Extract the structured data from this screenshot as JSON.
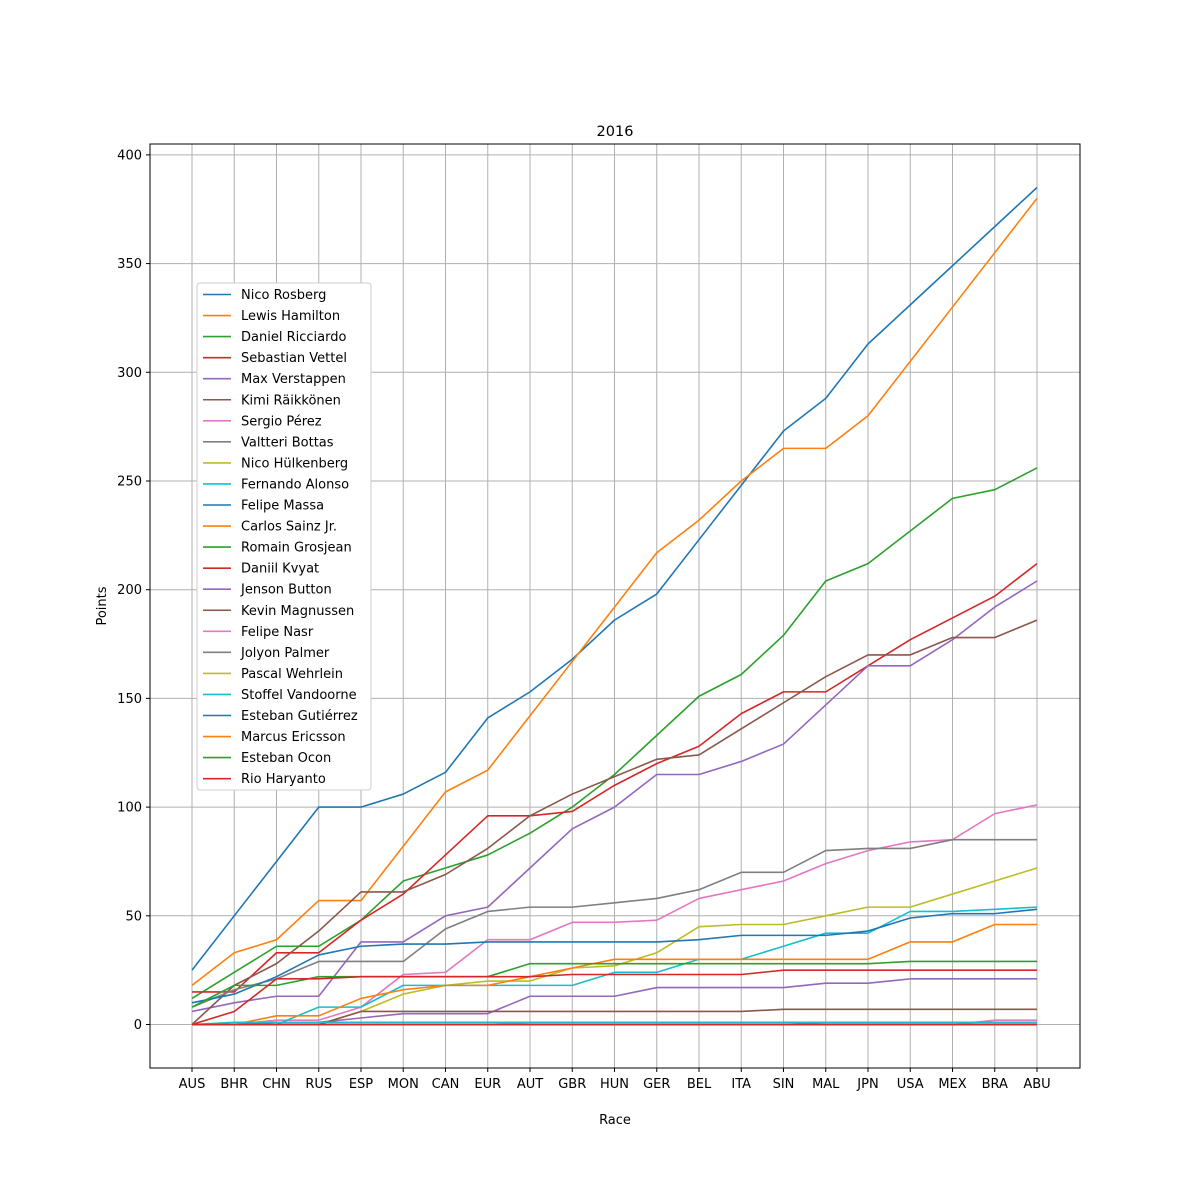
{
  "chart_data": {
    "type": "line",
    "title": "2016",
    "xlabel": "Race",
    "ylabel": "Points",
    "ylim": [
      -20,
      405
    ],
    "yticks": [
      0,
      50,
      100,
      150,
      200,
      250,
      300,
      350,
      400
    ],
    "grid": true,
    "legend_position": "upper-left",
    "categories": [
      "AUS",
      "BHR",
      "CHN",
      "RUS",
      "ESP",
      "MON",
      "CAN",
      "EUR",
      "AUT",
      "GBR",
      "HUN",
      "GER",
      "BEL",
      "ITA",
      "SIN",
      "MAL",
      "JPN",
      "USA",
      "MEX",
      "BRA",
      "ABU"
    ],
    "series": [
      {
        "name": "Nico Rosberg",
        "color": "#1f77b4",
        "values": [
          25,
          50,
          75,
          100,
          100,
          106,
          116,
          141,
          153,
          168,
          186,
          198,
          223,
          248,
          273,
          288,
          313,
          331,
          349,
          367,
          385
        ]
      },
      {
        "name": "Lewis Hamilton",
        "color": "#ff7f0e",
        "values": [
          18,
          33,
          39,
          57,
          57,
          82,
          107,
          117,
          142,
          167,
          192,
          217,
          232,
          250,
          265,
          265,
          280,
          305,
          330,
          355,
          380
        ]
      },
      {
        "name": "Daniel Ricciardo",
        "color": "#2ca02c",
        "values": [
          12,
          24,
          36,
          36,
          48,
          66,
          72,
          78,
          88,
          100,
          115,
          133,
          151,
          161,
          179,
          204,
          212,
          227,
          242,
          246,
          256
        ]
      },
      {
        "name": "Sebastian Vettel",
        "color": "#d62728",
        "values": [
          15,
          15,
          33,
          33,
          48,
          60,
          78,
          96,
          96,
          98,
          110,
          120,
          128,
          143,
          153,
          153,
          165,
          177,
          187,
          197,
          212
        ]
      },
      {
        "name": "Max Verstappen",
        "color": "#9467bd",
        "values": [
          6,
          10,
          13,
          13,
          38,
          38,
          50,
          54,
          72,
          90,
          100,
          115,
          115,
          121,
          129,
          147,
          165,
          165,
          177,
          192,
          204
        ]
      },
      {
        "name": "Kimi Räikkönen",
        "color": "#8c564b",
        "values": [
          0,
          18,
          28,
          43,
          61,
          61,
          69,
          81,
          96,
          106,
          114,
          122,
          124,
          136,
          148,
          160,
          170,
          170,
          178,
          178,
          186
        ]
      },
      {
        "name": "Sergio Pérez",
        "color": "#e377c2",
        "values": [
          0,
          0,
          2,
          2,
          8,
          23,
          24,
          39,
          39,
          47,
          47,
          48,
          58,
          62,
          66,
          74,
          80,
          84,
          85,
          97,
          101
        ]
      },
      {
        "name": "Valtteri Bottas",
        "color": "#7f7f7f",
        "values": [
          8,
          16,
          21,
          29,
          29,
          29,
          44,
          52,
          54,
          54,
          56,
          58,
          62,
          70,
          70,
          80,
          81,
          81,
          85,
          85,
          85
        ]
      },
      {
        "name": "Nico Hülkenberg",
        "color": "#bcbd22",
        "values": [
          0,
          0,
          0,
          0,
          6,
          14,
          18,
          20,
          20,
          26,
          27,
          33,
          45,
          46,
          46,
          50,
          54,
          54,
          60,
          66,
          72
        ]
      },
      {
        "name": "Fernando Alonso",
        "color": "#17becf",
        "values": [
          0,
          0,
          0,
          8,
          8,
          18,
          18,
          18,
          18,
          18,
          24,
          24,
          30,
          30,
          36,
          42,
          42,
          52,
          52,
          53,
          54
        ]
      },
      {
        "name": "Felipe Massa",
        "color": "#1f77b4",
        "values": [
          10,
          14,
          22,
          32,
          36,
          37,
          37,
          38,
          38,
          38,
          38,
          38,
          39,
          41,
          41,
          41,
          43,
          49,
          51,
          51,
          53
        ]
      },
      {
        "name": "Carlos Sainz Jr.",
        "color": "#ff7f0e",
        "values": [
          0,
          0,
          4,
          4,
          12,
          16,
          18,
          18,
          22,
          26,
          30,
          30,
          30,
          30,
          30,
          30,
          30,
          38,
          38,
          46,
          46
        ]
      },
      {
        "name": "Romain Grosjean",
        "color": "#2ca02c",
        "values": [
          8,
          18,
          18,
          22,
          22,
          22,
          22,
          22,
          28,
          28,
          28,
          28,
          28,
          28,
          28,
          28,
          28,
          29,
          29,
          29,
          29
        ]
      },
      {
        "name": "Daniil Kvyat",
        "color": "#d62728",
        "values": [
          0,
          6,
          21,
          21,
          22,
          22,
          22,
          22,
          22,
          23,
          23,
          23,
          23,
          23,
          25,
          25,
          25,
          25,
          25,
          25,
          25
        ]
      },
      {
        "name": "Jenson Button",
        "color": "#9467bd",
        "values": [
          0,
          0,
          1,
          1,
          3,
          5,
          5,
          5,
          13,
          13,
          13,
          17,
          17,
          17,
          17,
          19,
          19,
          21,
          21,
          21,
          21
        ]
      },
      {
        "name": "Kevin Magnussen",
        "color": "#8c564b",
        "values": [
          0,
          0,
          0,
          0,
          6,
          6,
          6,
          6,
          6,
          6,
          6,
          6,
          6,
          6,
          7,
          7,
          7,
          7,
          7,
          7,
          7
        ]
      },
      {
        "name": "Felipe Nasr",
        "color": "#e377c2",
        "values": [
          0,
          0,
          0,
          0,
          0,
          0,
          0,
          0,
          0,
          0,
          0,
          0,
          0,
          0,
          0,
          0,
          0,
          0,
          0,
          2,
          2
        ]
      },
      {
        "name": "Jolyon Palmer",
        "color": "#7f7f7f",
        "values": [
          0,
          0,
          0,
          0,
          0,
          0,
          0,
          0,
          0,
          0,
          0,
          0,
          0,
          0,
          0,
          1,
          1,
          1,
          1,
          1,
          1
        ]
      },
      {
        "name": "Pascal Wehrlein",
        "color": "#bcbd22",
        "values": [
          0,
          0,
          0,
          0,
          0,
          0,
          0,
          0,
          1,
          1,
          1,
          1,
          1,
          1,
          1,
          1,
          1,
          1,
          1,
          1,
          1
        ]
      },
      {
        "name": "Stoffel Vandoorne",
        "color": "#17becf",
        "values": [
          0,
          1,
          1,
          1,
          1,
          1,
          1,
          1,
          1,
          1,
          1,
          1,
          1,
          1,
          1,
          1,
          1,
          1,
          1,
          1,
          1
        ]
      },
      {
        "name": "Esteban Gutiérrez",
        "color": "#1f77b4",
        "values": [
          0,
          0,
          0,
          0,
          0,
          0,
          0,
          0,
          0,
          0,
          0,
          0,
          0,
          0,
          0,
          0,
          0,
          0,
          0,
          0,
          0
        ]
      },
      {
        "name": "Marcus Ericsson",
        "color": "#ff7f0e",
        "values": [
          0,
          0,
          0,
          0,
          0,
          0,
          0,
          0,
          0,
          0,
          0,
          0,
          0,
          0,
          0,
          0,
          0,
          0,
          0,
          0,
          0
        ]
      },
      {
        "name": "Esteban Ocon",
        "color": "#2ca02c",
        "values": [
          0,
          0,
          0,
          0,
          0,
          0,
          0,
          0,
          0,
          0,
          0,
          0,
          0,
          0,
          0,
          0,
          0,
          0,
          0,
          0,
          0
        ]
      },
      {
        "name": "Rio Haryanto",
        "color": "#d62728",
        "values": [
          0,
          0,
          0,
          0,
          0,
          0,
          0,
          0,
          0,
          0,
          0,
          0,
          0,
          0,
          0,
          0,
          0,
          0,
          0,
          0,
          0
        ]
      }
    ]
  }
}
